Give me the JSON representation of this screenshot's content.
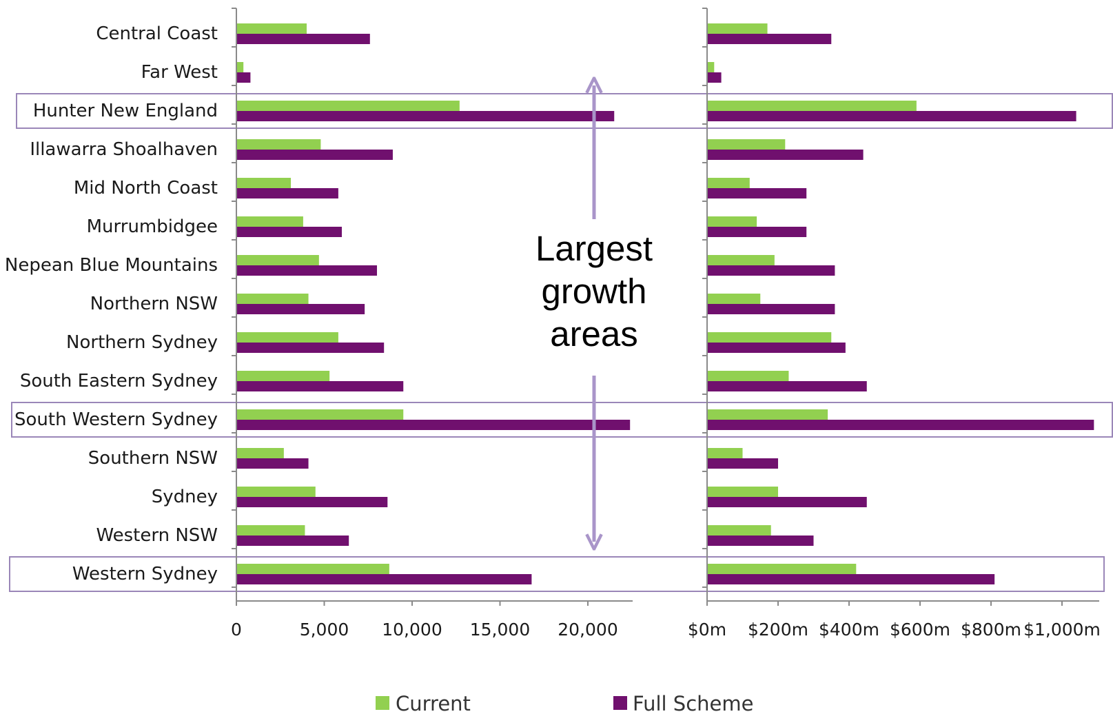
{
  "colors": {
    "current": "#92d050",
    "full_scheme": "#70106e",
    "highlight": "#9a86b8",
    "arrow": "#a995c9"
  },
  "annotation": {
    "lines": [
      "Largest",
      "growth",
      "areas"
    ]
  },
  "legend": {
    "items": [
      {
        "name": "Current",
        "color": "#92d050"
      },
      {
        "name": "Full Scheme",
        "color": "#70106e"
      }
    ]
  },
  "highlighted_categories": [
    "Hunter New England",
    "South Western Sydney",
    "Western Sydney"
  ],
  "chart_data": [
    {
      "type": "bar",
      "orientation": "horizontal",
      "categories": [
        "Central Coast",
        "Far West",
        "Hunter New England",
        "Illawarra Shoalhaven",
        "Mid North Coast",
        "Murrumbidgee",
        "Nepean Blue Mountains",
        "Northern NSW",
        "Northern Sydney",
        "South Eastern Sydney",
        "South Western Sydney",
        "Southern NSW",
        "Sydney",
        "Western NSW",
        "Western Sydney"
      ],
      "series": [
        {
          "name": "Current",
          "values": [
            4000,
            400,
            12700,
            4800,
            3100,
            3800,
            4700,
            4100,
            5800,
            5300,
            9500,
            2700,
            4500,
            3900,
            8700
          ]
        },
        {
          "name": "Full Scheme",
          "values": [
            7600,
            800,
            21500,
            8900,
            5800,
            6000,
            8000,
            7300,
            8400,
            9500,
            22400,
            4100,
            8600,
            6400,
            16800
          ]
        }
      ],
      "xticks": [
        "0",
        "5,000",
        "10,000",
        "15,000",
        "20,000"
      ],
      "xtick_values": [
        0,
        5000,
        10000,
        15000,
        20000
      ],
      "xlim": [
        0,
        22500
      ],
      "legend": "bottom"
    },
    {
      "type": "bar",
      "orientation": "horizontal",
      "categories": [
        "Central Coast",
        "Far West",
        "Hunter New England",
        "Illawarra Shoalhaven",
        "Mid North Coast",
        "Murrumbidgee",
        "Nepean Blue Mountains",
        "Northern NSW",
        "Northern Sydney",
        "South Eastern Sydney",
        "South Western Sydney",
        "Southern NSW",
        "Sydney",
        "Western NSW",
        "Western Sydney"
      ],
      "series": [
        {
          "name": "Current",
          "values": [
            170,
            20,
            590,
            220,
            120,
            140,
            190,
            150,
            350,
            230,
            340,
            100,
            200,
            180,
            420
          ]
        },
        {
          "name": "Full Scheme",
          "values": [
            350,
            40,
            1040,
            440,
            280,
            280,
            360,
            360,
            390,
            450,
            1090,
            200,
            450,
            300,
            810
          ]
        }
      ],
      "xticks": [
        "$0m",
        "$200m",
        "$400m",
        "$600m",
        "$800m",
        "$1,000m"
      ],
      "xtick_values": [
        0,
        200,
        400,
        600,
        800,
        1000
      ],
      "xlim": [
        0,
        1100
      ],
      "legend": "bottom"
    }
  ]
}
